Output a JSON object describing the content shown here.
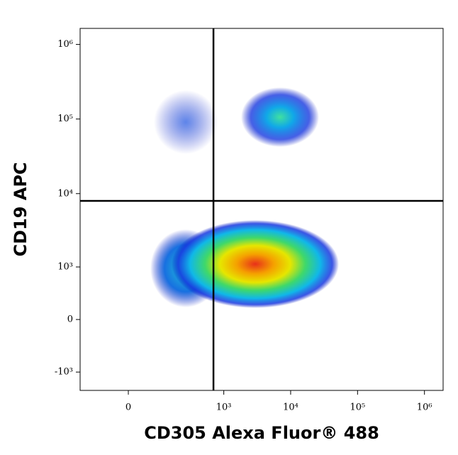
{
  "chart_data": {
    "type": "density",
    "x_label": "CD305 Alexa Fluor® 488",
    "y_label": "CD19 APC",
    "scale": "biexponential",
    "xlim": [
      -190,
      1900000
    ],
    "ylim": [
      -1810,
      1640000
    ],
    "xticks": [
      0,
      {
        "value": 1000,
        "label": "10³"
      },
      {
        "value": 10000,
        "label": "10⁴"
      },
      {
        "value": 100000,
        "label": "10⁵"
      },
      {
        "value": 1000000,
        "label": "10⁶"
      }
    ],
    "yticks": [
      {
        "value": -1000,
        "label": "-10³"
      },
      0,
      {
        "value": 1000,
        "label": "10³"
      },
      {
        "value": 10000,
        "label": "10⁴"
      },
      {
        "value": 100000,
        "label": "10⁵"
      },
      {
        "value": 1000000,
        "label": "10⁶"
      }
    ],
    "quadrant_gate": {
      "x": 700,
      "y": 8000
    }
  }
}
